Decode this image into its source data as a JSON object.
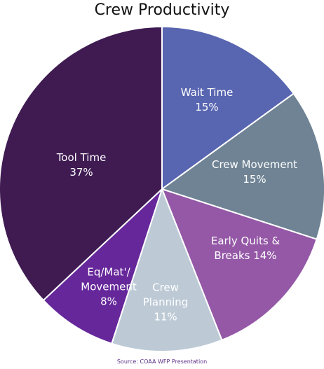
{
  "chart_data": {
    "type": "pie",
    "title": "Crew Productivity",
    "source": "Source: COAA WFP Presentation",
    "slices": [
      {
        "label_lines": [
          "Wait Time",
          "15%"
        ],
        "value": 15,
        "color": "#5865b0"
      },
      {
        "label_lines": [
          "Crew Movement",
          "15%"
        ],
        "value": 15,
        "color": "#6f8394"
      },
      {
        "label_lines": [
          "Early Quits &",
          "Breaks 14%"
        ],
        "value": 14,
        "color": "#9458a6"
      },
      {
        "label_lines": [
          "Crew",
          "Planning",
          "11%"
        ],
        "value": 11,
        "color": "#bdcad6"
      },
      {
        "label_lines": [
          "Eq/Mat'/",
          "Movement",
          "8%"
        ],
        "value": 8,
        "color": "#66279a"
      },
      {
        "label_lines": [
          "Tool Time",
          "37%"
        ],
        "value": 37,
        "color": "#3f1b52"
      }
    ]
  }
}
